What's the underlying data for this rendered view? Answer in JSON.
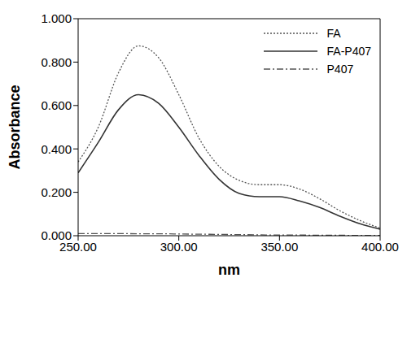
{
  "chart_data": {
    "type": "line",
    "x_label": "nm",
    "y_label": "Absorbance",
    "x": [
      250,
      260,
      270,
      280,
      290,
      300,
      310,
      320,
      330,
      340,
      350,
      360,
      370,
      380,
      390,
      400
    ],
    "series": [
      {
        "name": "FA",
        "color": "#555555",
        "line_style": "dotted",
        "values": [
          0.34,
          0.5,
          0.75,
          0.875,
          0.82,
          0.65,
          0.45,
          0.32,
          0.255,
          0.235,
          0.235,
          0.215,
          0.17,
          0.115,
          0.07,
          0.035
        ]
      },
      {
        "name": "FA-P407",
        "color": "#333333",
        "line_style": "solid",
        "values": [
          0.29,
          0.43,
          0.58,
          0.65,
          0.61,
          0.5,
          0.37,
          0.26,
          0.195,
          0.18,
          0.18,
          0.16,
          0.13,
          0.09,
          0.055,
          0.03
        ]
      },
      {
        "name": "P407",
        "color": "#555555",
        "line_style": "dashdot",
        "values": [
          0.01,
          0.01,
          0.01,
          0.009,
          0.009,
          0.008,
          0.007,
          0.006,
          0.005,
          0.004,
          0.003,
          0.003,
          0.002,
          0.002,
          0.001,
          0.001
        ]
      }
    ],
    "xlim": [
      250,
      400
    ],
    "xticks": [
      {
        "value": 250,
        "label": "250.00"
      },
      {
        "value": 300,
        "label": "300.00"
      },
      {
        "value": 350,
        "label": "350.00"
      },
      {
        "value": 400,
        "label": "400.00"
      }
    ],
    "ylim": [
      0,
      1
    ],
    "yticks": [
      {
        "value": 0,
        "label": "0.000"
      },
      {
        "value": 0.2,
        "label": "0.200"
      },
      {
        "value": 0.4,
        "label": "0.400"
      },
      {
        "value": 0.6,
        "label": "0.600"
      },
      {
        "value": 0.8,
        "label": "0.800"
      },
      {
        "value": 1,
        "label": "1.000"
      }
    ],
    "grid": false,
    "legend": "upper right"
  }
}
